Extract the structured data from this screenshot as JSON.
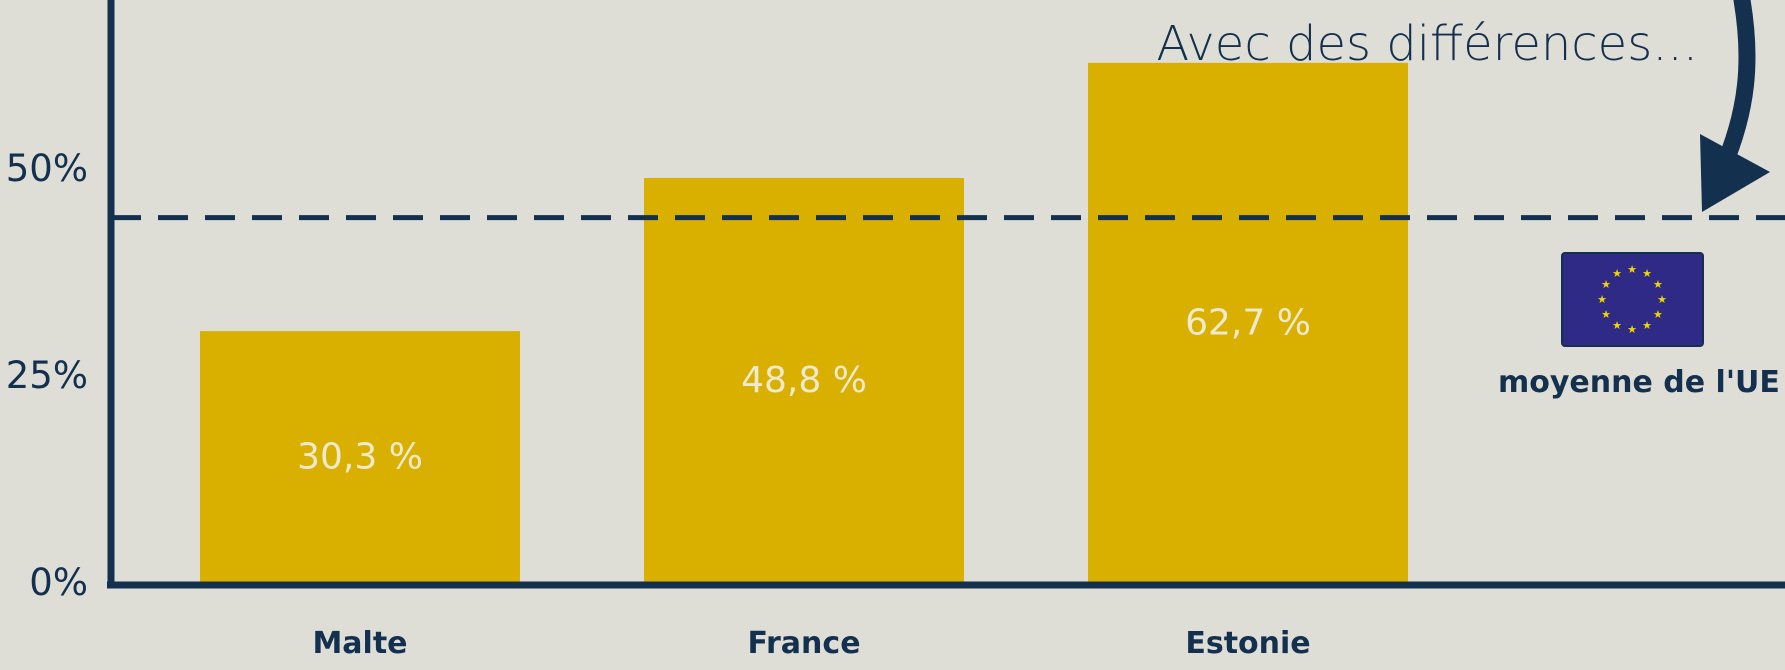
{
  "colors": {
    "background": "#dfded6",
    "bar": "#d9b000",
    "axis": "#14304f",
    "data_label": "#efe9cf",
    "eu_flag": "#2e2a86",
    "eu_star": "#f1d500"
  },
  "chart_data": {
    "type": "bar",
    "categories": [
      "Malte",
      "France",
      "Estonie"
    ],
    "values": [
      30.3,
      48.8,
      62.7
    ],
    "data_labels": [
      "30,3 %",
      "48,8 %",
      "62,7 %"
    ],
    "yticks": [
      {
        "value": 0,
        "label": "0%"
      },
      {
        "value": 25,
        "label": "25%"
      },
      {
        "value": 50,
        "label": "50%"
      }
    ],
    "ylim": [
      0,
      71
    ],
    "reference_line": {
      "value": 44,
      "style": "dashed",
      "label": "moyenne de l'UE",
      "icon": "eu-flag-icon"
    },
    "annotation": "Avec des différences...",
    "title": "",
    "xlabel": "",
    "ylabel": ""
  }
}
